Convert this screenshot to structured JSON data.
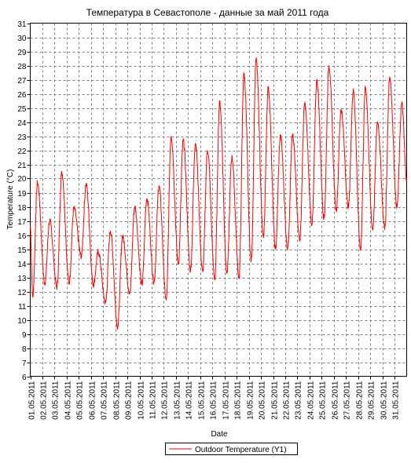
{
  "chart_data": {
    "type": "line",
    "title": "Температура в Севастополе - данные за май 2011 года",
    "xlabel": "Date",
    "ylabel": "Temperature (°C)",
    "ylim": [
      6,
      31
    ],
    "yticks": [
      6,
      7,
      8,
      9,
      10,
      11,
      12,
      13,
      14,
      15,
      16,
      17,
      18,
      19,
      20,
      21,
      22,
      23,
      24,
      25,
      26,
      27,
      28,
      29,
      30,
      31
    ],
    "x_tick_labels": [
      "01.05.2011",
      "02.05.2011",
      "03.05.2011",
      "04.05.2011",
      "05.05.2011",
      "06.05.2011",
      "07.05.2011",
      "08.05.2011",
      "09.05.2011",
      "10.05.2011",
      "11.05.2011",
      "12.05.2011",
      "13.05.2011",
      "14.05.2011",
      "15.05.2011",
      "16.05.2011",
      "17.05.2011",
      "18.05.2011",
      "19.05.2011",
      "20.05.2011",
      "21.05.2011",
      "22.05.2011",
      "23.05.2011",
      "24.05.2011",
      "25.05.2011",
      "26.05.2011",
      "27.05.2011",
      "28.05.2011",
      "29.05.2011",
      "30.05.2011",
      "31.05.2011"
    ],
    "grid": true,
    "legend": "bottom",
    "series": [
      {
        "name": "Outdoor Temperature (Y1)",
        "color": "#ff0000",
        "daily_min": [
          11.6,
          12.6,
          12.3,
          12.6,
          14.5,
          12.5,
          11.2,
          9.5,
          11.9,
          12.5,
          12.7,
          11.4,
          14.0,
          13.5,
          13.4,
          12.9,
          13.3,
          13.0,
          14.2,
          15.8,
          15.0,
          15.1,
          15.7,
          16.8,
          17.2,
          17.8,
          18.0,
          15.0,
          16.4,
          16.5,
          18.0
        ],
        "daily_max": [
          19.7,
          17.0,
          20.4,
          17.9,
          19.6,
          14.8,
          16.3,
          15.9,
          18.0,
          18.6,
          19.5,
          23.0,
          22.7,
          22.5,
          22.0,
          25.4,
          21.5,
          27.4,
          28.4,
          26.4,
          23.0,
          23.0,
          25.3,
          26.9,
          28.0,
          24.9,
          26.2,
          26.4,
          24.0,
          27.2,
          25.3
        ],
        "end_value": 20.0
      }
    ]
  }
}
